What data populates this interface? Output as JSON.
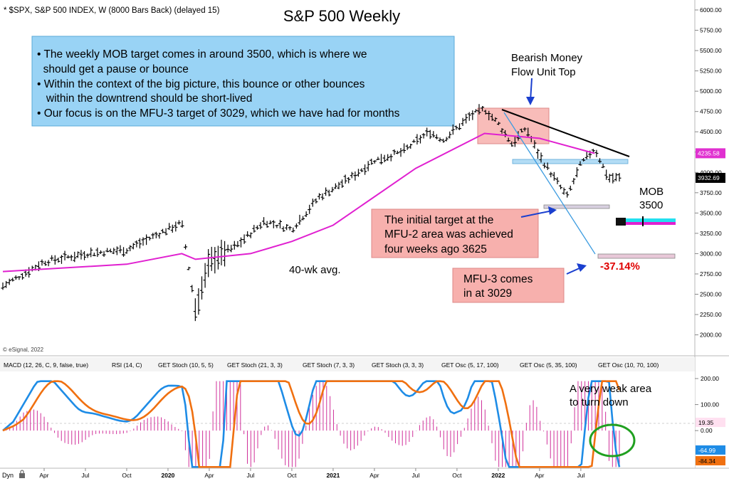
{
  "header": {
    "symbol_line": "* $SPX, S&P 500 INDEX, W (8000 Bars Back) (delayed 15)",
    "title": "S&P 500 Weekly",
    "copyright": "© eSignal, 2022"
  },
  "colors": {
    "price_bars": "#000000",
    "ma_line": "#e020d0",
    "callout_blue": "#99d3f5",
    "callout_pink": "#f7b0ad",
    "target_red": "#e00000",
    "macd_blue": "#1e8ce6",
    "macd_orange": "#f07010",
    "hist": "#d0309a",
    "ellipse": "#20a020"
  },
  "annotations": {
    "bullets": [
      "• The weekly MOB target comes in around 3500, which is where we",
      "  should get a pause or bounce",
      "• Within the context of the big picture, this bounce or other bounces",
      "   within the downtrend should be short-lived",
      "• Our focus is on the MFU-3 target of 3029, which we have had for months"
    ],
    "bearish_line1": "Bearish Money",
    "bearish_line2": "Flow Unit Top",
    "mob_line1": "MOB",
    "mob_line2": "3500",
    "initial_target": [
      "The initial target at the",
      "MFU-2 area was achieved",
      "four weeks ago 3625"
    ],
    "mfu3": [
      "MFU-3 comes",
      "in at 3029"
    ],
    "pct": "-37.14%",
    "ma_label": "40-wk avg.",
    "weak": [
      "A very weak area",
      "to turn down"
    ]
  },
  "price_axis": {
    "ticks": [
      "6000.00",
      "5750.00",
      "5500.00",
      "5250.00",
      "5000.00",
      "4750.00",
      "4500.00",
      "4250.00",
      "4000.00",
      "3750.00",
      "3500.00",
      "3250.00",
      "3000.00",
      "2750.00",
      "2500.00",
      "2250.00",
      "2000.00"
    ],
    "badge_ma": "4235.58",
    "badge_last": "3932.69"
  },
  "tabs": [
    "MACD (12, 26, C, 9, false, true)",
    "RSI (14, C)",
    "GET Stoch (10, 5, 5)",
    "GET Stoch (21, 3, 3)",
    "GET Stoch (7, 3, 3)",
    "GET Stoch (3, 3, 3)",
    "GET Osc (5, 17, 100)",
    "GET Osc (5, 35, 100)",
    "GET Osc (10, 70, 100)"
  ],
  "macd_axis": {
    "ticks": [
      "200.00",
      "100.00",
      "0.00"
    ],
    "badge_hist": "19.35",
    "badge_blue": "-64.99",
    "badge_orange": "-84.34"
  },
  "time_axis": {
    "prefix": "Dyn",
    "labels": [
      "Apr",
      "Jul",
      "Oct",
      "2020",
      "Apr",
      "Jul",
      "Oct",
      "2021",
      "Apr",
      "Jul",
      "Oct",
      "2022",
      "Apr",
      "Jul"
    ]
  },
  "chart_data": {
    "type": "line",
    "title": "S&P 500 Weekly",
    "x_range": [
      "2019-01",
      "2022-09"
    ],
    "y_range": [
      1950,
      6050
    ],
    "price_series": {
      "x": [
        "2019-01",
        "2019-04",
        "2019-07",
        "2019-10",
        "2020-01",
        "2020-02",
        "2020-03",
        "2020-04",
        "2020-06",
        "2020-08",
        "2020-09",
        "2020-10",
        "2020-12",
        "2021-02",
        "2021-04",
        "2021-06",
        "2021-08",
        "2021-09",
        "2021-11",
        "2021-12",
        "2022-01",
        "2022-02",
        "2022-03",
        "2022-04",
        "2022-05",
        "2022-06",
        "2022-07",
        "2022-08",
        "2022-09"
      ],
      "close": [
        2600,
        2900,
        3000,
        3050,
        3300,
        3380,
        2300,
        2900,
        3100,
        3400,
        3350,
        3300,
        3700,
        3900,
        4150,
        4250,
        4500,
        4400,
        4700,
        4780,
        4600,
        4350,
        4550,
        4200,
        3950,
        3700,
        4100,
        4300,
        3930
      ]
    },
    "ma40_series": {
      "x": [
        "2019-01",
        "2019-10",
        "2020-02",
        "2020-03",
        "2020-07",
        "2020-10",
        "2021-01",
        "2021-07",
        "2021-12",
        "2022-04",
        "2022-08"
      ],
      "value": [
        2780,
        2870,
        3000,
        2930,
        3000,
        3150,
        3350,
        4050,
        4480,
        4420,
        4235
      ]
    },
    "levels": {
      "mob_target": 3500,
      "mfu2_target": 3625,
      "mfu3_target": 3029,
      "ma_last": 4235.58,
      "last_close": 3932.69,
      "decline_pct": -37.14
    },
    "macd": {
      "y_range": [
        -150,
        200
      ],
      "ticks": [
        200,
        100,
        0
      ],
      "last_hist": 19.35,
      "last_macd": -64.99,
      "last_signal": -84.34
    }
  }
}
